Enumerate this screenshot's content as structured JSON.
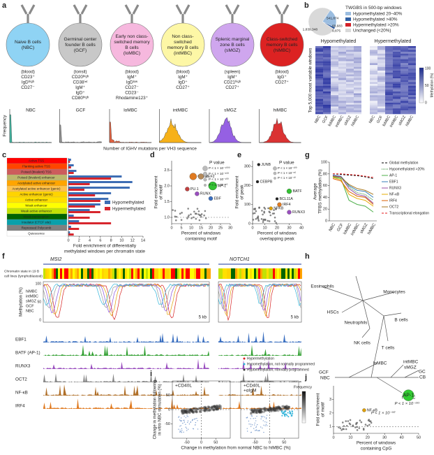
{
  "a": {
    "letter": "a",
    "ylabel": "Frequency",
    "xlabel": "Number of IGHV mutations per VH3 sequence",
    "cells": [
      {
        "name": [
          "Naive B cells",
          "(NBC)"
        ],
        "desc": [
          "(blood)",
          "CD23⁺",
          "IgDʰⁱᵍʰ",
          "CD27⁻"
        ],
        "short": "NBC",
        "color": "#8fd3f4",
        "hist_color": "#2fb39a"
      },
      {
        "name": [
          "Germinal center",
          "founder B cells",
          "(GCF)"
        ],
        "desc": [
          "(tonsil)",
          "CD20ʰⁱᵍʰ",
          "CD38ⁱⁿᵗ",
          "IgM⁺",
          "IgD⁺",
          "CD80ʰⁱᵍʰ"
        ],
        "short": "GCF",
        "color": "#c8c8c8",
        "hist_color": "#8a8a8a"
      },
      {
        "name": [
          "Early non class-",
          "switched memory",
          "B cells",
          "(loMBC)"
        ],
        "desc": [
          "(blood)",
          "IgM⁺",
          "IgDˡᵒʷ",
          "CD27⁻",
          "CD23⁻",
          "Rhodamine123⁺"
        ],
        "short": "loMBC",
        "color": "#f6b8de",
        "hist_color": "#e0522e"
      },
      {
        "name": [
          "Non class-",
          "switched",
          "memory B cells",
          "(intMBC)"
        ],
        "desc": [
          "(blood)",
          "IgM⁺",
          "IgD⁺",
          "CD27⁺"
        ],
        "short": "intMBC",
        "color": "#fdf7a6",
        "hist_color": "#f5a800"
      },
      {
        "name": [
          "Splenic marginal",
          "zone B cells",
          "(sMGZ)"
        ],
        "desc": [
          "(spleen)",
          "IgM⁺",
          "CD21ʰⁱᵍʰ",
          "CD27⁺"
        ],
        "short": "sMGZ",
        "color": "#cfa6ee",
        "hist_color": "#8a4fe0"
      },
      {
        "name": [
          "Class-switched",
          "memory B cells",
          "(hiMBC)"
        ],
        "desc": [
          "(blood)",
          "IgG⁺",
          "CD27⁺"
        ],
        "short": "hiMBC",
        "color": "#dc2222",
        "hist_color": "#d61d1d"
      }
    ]
  },
  "b": {
    "letter": "b",
    "legend_title": "TWGBS in 500-bp windows",
    "pie": {
      "labels": [
        "Hypomethylated 20–40%",
        "Hypomethylated >40%",
        "Hypermethylated >20%",
        "Unchanged (<20%)"
      ],
      "colors": [
        "#9bbde0",
        "#2f5fa3",
        "#d42027",
        "#d9d9d9"
      ],
      "values": [
        541874,
        60683,
        9875,
        1839348
      ],
      "value_labels": [
        "541,874",
        "60,683",
        "9,875",
        "1,839,348"
      ]
    },
    "heat_titles": [
      "Hypomethylated",
      "Hypermethylated"
    ],
    "side_label": "Top 5,000 most variable windows",
    "colorbar_ticks": [
      "100",
      "50",
      "0"
    ],
    "colorbar_label": "Methylation (%)",
    "columns": [
      "NBC",
      "GCF",
      "loMBC",
      "intMBC",
      "sMGZ",
      "hiMBC"
    ]
  },
  "c": {
    "letter": "c",
    "xlabel": [
      "Fold enrichment of differentially",
      "methylated windows per chromatin state"
    ],
    "categories": [
      "Active TSS",
      "Flanking active TSS",
      "Poised (bivalent) TSS",
      "Poised (bivalent) enhancer",
      "Acetylated active enhancer",
      "Acetylated active enhancer (genic)",
      "Active enhancer (genic)",
      "Active enhancer",
      "Weak enhancer",
      "Weak active enhancer",
      "Weak transcription",
      "Insulator (CTCF site)",
      "Repressed Polycomb",
      "Quiescence"
    ],
    "state_colors": [
      "#ff0000",
      "#ff4500",
      "#cd5c5c",
      "#bdb76b",
      "#ffa500",
      "#ffc34d",
      "#ffd400",
      "#ffe000",
      "#ffff00",
      "#c2e105",
      "#006400",
      "#0aa0aa",
      "#808080",
      "#ffffff"
    ],
    "series": [
      {
        "name": "Hypomethylated",
        "color": "#3d6db4",
        "values": [
          0.5,
          1,
          1.5,
          10,
          12,
          11.5,
          8,
          7.5,
          6,
          4,
          1,
          2,
          0.5,
          0.3
        ]
      },
      {
        "name": "Hypermethylated",
        "color": "#d7262d",
        "values": [
          0.3,
          0.5,
          1,
          8,
          4,
          3,
          5,
          6,
          5,
          6,
          4,
          8,
          2,
          1
        ]
      }
    ],
    "xlim": [
      0,
      14
    ],
    "xticks": [
      0,
      2,
      4,
      6,
      8,
      10,
      12,
      14
    ]
  },
  "d": {
    "letter": "d",
    "ylabel": [
      "Fold enrichment",
      "of motif"
    ],
    "xlabel": [
      "Percent of windows",
      "containing motif"
    ],
    "xlim": [
      0,
      30
    ],
    "xticks": [
      0,
      5,
      10,
      15,
      20,
      25,
      30
    ],
    "ylim": [
      0.8,
      2.8
    ],
    "yticks": [
      {
        "value": 1,
        "label": "1.0"
      },
      {
        "value": 1.5,
        "label": "1.5"
      },
      {
        "value": 2,
        "label": "2.0"
      },
      {
        "value": 2.5,
        "label": "2.5"
      }
    ],
    "legend_title": "P value",
    "legend": [
      "P < 1 × 10⁻¹⁰⁰⁰",
      "P < 1 × 10⁻⁵⁰⁰",
      "P < 1 × 10⁻¹⁰⁰",
      "P < 1 × 10⁻⁵⁰"
    ],
    "points": [
      {
        "label": "OCT2",
        "x": 11,
        "y": 2.3,
        "color": "#e07a20"
      },
      {
        "label": "MEF2",
        "x": 15,
        "y": 2.3,
        "color": "#b58a5a"
      },
      {
        "label": "AP-1",
        "x": 21,
        "y": 2,
        "color": "#33c233"
      },
      {
        "label": "PU.1",
        "x": 8,
        "y": 1.9,
        "color": "#c04040"
      },
      {
        "label": "RUNX",
        "x": 13,
        "y": 1.75,
        "color": "#9a4fbf"
      },
      {
        "label": "EBF",
        "x": 20,
        "y": 1.6,
        "color": "#3a6fc0"
      }
    ]
  },
  "e": {
    "letter": "e",
    "ylabel": [
      "Fold enrichment",
      "of peak"
    ],
    "xlabel": [
      "Percent of windows",
      "overlapping peak"
    ],
    "xlim": [
      0,
      40
    ],
    "xticks": [
      0,
      10,
      20,
      30,
      40
    ],
    "ylim": [
      0,
      330
    ],
    "yticks": [
      0,
      100,
      200,
      300
    ],
    "legend_title": "P value",
    "legend": [
      "P < 1 × 10⁻¹⁰⁰",
      "P < 1 × 10⁻⁵⁰",
      "P < 1 × 10⁻¹⁰"
    ],
    "points": [
      {
        "label": "JUNB",
        "x": 5,
        "y": 310,
        "color": "#222222"
      },
      {
        "label": "CEBPB",
        "x": 4,
        "y": 220,
        "color": "#222222"
      },
      {
        "label": "BATF",
        "x": 30,
        "y": 170,
        "color": "#33c233"
      },
      {
        "label": "BCL11A",
        "x": 20,
        "y": 130,
        "color": "#222222"
      },
      {
        "label": "IRF4",
        "x": 22,
        "y": 100,
        "color": "#e07a20"
      },
      {
        "label": "NFKB",
        "x": 15,
        "y": 80,
        "color": "#e0a000"
      },
      {
        "label": "RUNX3",
        "x": 30,
        "y": 60,
        "color": "#9a4fbf"
      }
    ]
  },
  "g": {
    "letter": "g",
    "ylabel": [
      "Average",
      "TFBS methylation (%)"
    ],
    "categories": [
      "NBC",
      "GCF",
      "loMBC",
      "intMBC",
      "sMGZ",
      "hiMBC"
    ],
    "ylim": [
      0,
      100
    ],
    "yticks": [
      0,
      20,
      40,
      60,
      80,
      100
    ],
    "series": [
      {
        "name": "Global methylation",
        "color": "#000000",
        "dash": "3,2",
        "values": [
          80,
          79,
          78,
          77,
          75,
          72
        ]
      },
      {
        "name": "Hypomethylated >20%",
        "color": "#2a8a2a",
        "dash": "1,1",
        "values": [
          76,
          74,
          58,
          48,
          45,
          35
        ]
      },
      {
        "name": "AP-1",
        "color": "#4daf4a",
        "values": [
          75,
          72,
          35,
          28,
          25,
          15
        ]
      },
      {
        "name": "EBF1",
        "color": "#377eb8",
        "values": [
          78,
          76,
          60,
          52,
          50,
          40
        ]
      },
      {
        "name": "RUNX3",
        "color": "#984ea3",
        "values": [
          77,
          75,
          55,
          45,
          42,
          30
        ]
      },
      {
        "name": "NF-κB",
        "color": "#e6ab02",
        "values": [
          74,
          70,
          45,
          38,
          35,
          25
        ]
      },
      {
        "name": "IRF4",
        "color": "#d95f02",
        "values": [
          72,
          68,
          50,
          42,
          40,
          28
        ]
      },
      {
        "name": "OCT2",
        "color": "#a6761d",
        "values": [
          76,
          74,
          62,
          55,
          52,
          45
        ]
      },
      {
        "name": "Transcriptional elongation",
        "color": "#e41a1c",
        "dash": "3,2",
        "values": [
          80,
          80,
          79,
          78,
          76,
          74
        ]
      }
    ]
  },
  "f": {
    "letter": "f",
    "genes": [
      "MSI2",
      "NOTCH1"
    ],
    "state_label": [
      "Chromatin state in 19 B",
      "cell lines (lymphoblastoid)"
    ],
    "ylabel": "Methylation (%)",
    "yticks": [
      "100",
      "50",
      "0"
    ],
    "legend": [
      {
        "name": "hiMBC",
        "color": "#d62020"
      },
      {
        "name": "intMBC",
        "color": "#e0a000"
      },
      {
        "name": "sMGZ",
        "color": "#8a4fe0"
      },
      {
        "name": "GCF",
        "color": "#999999"
      },
      {
        "name": "NBC",
        "color": "#2fb3d9"
      }
    ],
    "scale": "5 kb",
    "tracks": [
      {
        "name": "EBF1",
        "color": "#3a6fc0"
      },
      {
        "name": "BATF (AP-1)",
        "color": "#33a033"
      },
      {
        "name": "RUNX3",
        "color": "#9a4fbf"
      },
      {
        "name": "OCT2",
        "color": "#888888"
      },
      {
        "name": "NF-κB",
        "color": "#b0702a"
      },
      {
        "name": "IRF4",
        "color": "#e07a20"
      }
    ]
  },
  "h": {
    "letter": "h",
    "labels": [
      "Neutrophils",
      "Eosinophils",
      "Monocytes",
      "HSCs",
      "B cells",
      "T cells",
      "NK cells",
      "loMBC",
      "intMBC",
      "sMGZ",
      "GC",
      "CB",
      "GCF",
      "NBC",
      "hiMBC"
    ]
  },
  "i": {
    "letter": "i",
    "ylabel": [
      "Change in methylation following",
      "in vitro NBC stimulation (%)"
    ],
    "xlabel": "Change in methylation from normal NBC to hiMBC (%)",
    "panels": [
      [
        "+CD40L"
      ],
      [
        "+CD40L",
        "+αIgM"
      ]
    ],
    "xticks": [
      -50,
      0,
      50
    ],
    "yticks": [
      -50,
      0,
      50
    ],
    "xlim": [
      -100,
      100
    ],
    "ylim": [
      -100,
      100
    ],
    "legend": [
      {
        "name": "Hypermethylation",
        "color": "#d62020"
      },
      {
        "name": "Hypomethylation, not normally programmed",
        "color": "#2fb3d9"
      },
      {
        "name": "Hypomethylation, normally programmed",
        "color": "#333333"
      }
    ],
    "colorbar_label": "Frequency"
  },
  "j": {
    "letter": "j",
    "ylabel": [
      "Fold enrichment",
      "of motif"
    ],
    "xlabel": [
      "Percent of windows",
      "containing CpG"
    ],
    "xlim": [
      0,
      50
    ],
    "xticks": [
      0,
      10,
      20,
      30,
      40,
      50
    ],
    "ylim": [
      0.5,
      4
    ],
    "yticks": [
      1,
      2,
      3
    ],
    "points": [
      {
        "label": "AP-1",
        "x": 44,
        "y": 3.3,
        "color": "#33cc33",
        "p": "P < 1 × 10⁻¹³¹"
      },
      {
        "label": "NF-κB",
        "x": 18,
        "y": 2.2,
        "color": "#e0a000",
        "p": "P < 1 × 10⁻³⁰"
      }
    ]
  }
}
